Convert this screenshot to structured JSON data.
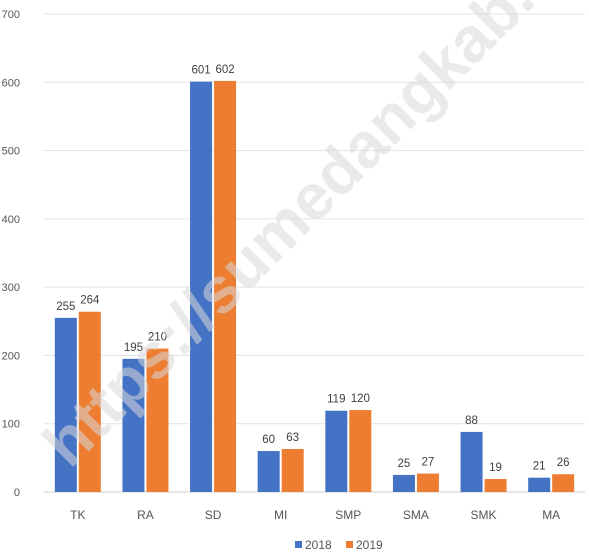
{
  "watermark": "https://sumedangkab.bps.go.id",
  "chart_data": {
    "type": "bar",
    "title": "",
    "xlabel": "",
    "ylabel": "",
    "categories": [
      "TK",
      "RA",
      "SD",
      "MI",
      "SMP",
      "SMA",
      "SMK",
      "MA"
    ],
    "series": [
      {
        "name": "2018",
        "color": "#4472c4",
        "values": [
          255,
          195,
          601,
          60,
          119,
          25,
          88,
          21
        ]
      },
      {
        "name": "2019",
        "color": "#ed7d31",
        "values": [
          264,
          210,
          602,
          63,
          120,
          27,
          19,
          26
        ]
      }
    ],
    "yticks": [
      "0",
      "100",
      "200",
      "300",
      "400",
      "500",
      "600",
      "700"
    ],
    "ylim": [
      0,
      700
    ],
    "grid": true,
    "legend": "bottom-center"
  }
}
